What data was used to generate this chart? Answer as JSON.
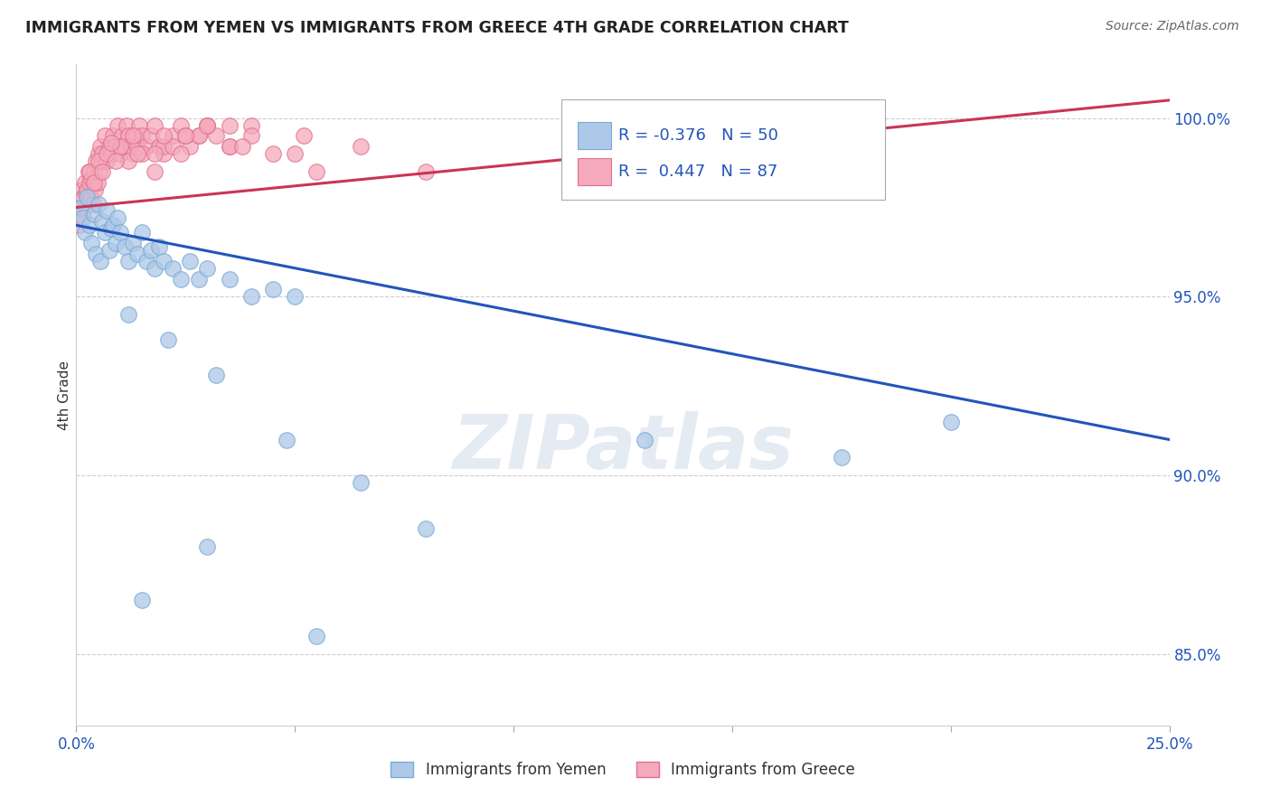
{
  "title": "IMMIGRANTS FROM YEMEN VS IMMIGRANTS FROM GREECE 4TH GRADE CORRELATION CHART",
  "source": "Source: ZipAtlas.com",
  "ylabel": "4th Grade",
  "xlim": [
    0.0,
    25.0
  ],
  "ylim": [
    83.0,
    101.5
  ],
  "yticks": [
    85.0,
    90.0,
    95.0,
    100.0
  ],
  "ytick_labels": [
    "85.0%",
    "90.0%",
    "95.0%",
    "100.0%"
  ],
  "yemen_R": -0.376,
  "yemen_N": 50,
  "greece_R": 0.447,
  "greece_N": 87,
  "yemen_color": "#adc8e8",
  "yemen_edge": "#7aaad4",
  "greece_color": "#f5aabb",
  "greece_edge": "#e07090",
  "trend_yemen_color": "#2255bb",
  "trend_greece_color": "#cc3355",
  "background_color": "#ffffff",
  "watermark": "ZIPatlas",
  "legend_text_color": "#2255bb",
  "title_color": "#222222",
  "source_color": "#666666",
  "yemen_x": [
    0.1,
    0.15,
    0.2,
    0.25,
    0.3,
    0.35,
    0.4,
    0.45,
    0.5,
    0.55,
    0.6,
    0.65,
    0.7,
    0.75,
    0.8,
    0.85,
    0.9,
    0.95,
    1.0,
    1.1,
    1.2,
    1.3,
    1.4,
    1.5,
    1.6,
    1.7,
    1.8,
    1.9,
    2.0,
    2.2,
    2.4,
    2.6,
    2.8,
    3.0,
    3.5,
    4.0,
    4.5,
    5.0,
    1.2,
    2.1,
    3.2,
    4.8,
    6.5,
    8.0,
    13.0,
    17.5,
    20.0,
    1.5,
    3.0,
    5.5
  ],
  "yemen_y": [
    97.5,
    97.2,
    96.8,
    97.8,
    97.0,
    96.5,
    97.3,
    96.2,
    97.6,
    96.0,
    97.1,
    96.8,
    97.4,
    96.3,
    96.9,
    97.0,
    96.5,
    97.2,
    96.8,
    96.4,
    96.0,
    96.5,
    96.2,
    96.8,
    96.0,
    96.3,
    95.8,
    96.4,
    96.0,
    95.8,
    95.5,
    96.0,
    95.5,
    95.8,
    95.5,
    95.0,
    95.2,
    95.0,
    94.5,
    93.8,
    92.8,
    91.0,
    89.8,
    88.5,
    91.0,
    90.5,
    91.5,
    86.5,
    88.0,
    85.5
  ],
  "greece_x": [
    0.05,
    0.08,
    0.1,
    0.12,
    0.15,
    0.18,
    0.2,
    0.22,
    0.25,
    0.28,
    0.3,
    0.32,
    0.35,
    0.38,
    0.4,
    0.42,
    0.45,
    0.48,
    0.5,
    0.52,
    0.55,
    0.58,
    0.6,
    0.65,
    0.7,
    0.75,
    0.8,
    0.85,
    0.9,
    0.95,
    1.0,
    1.05,
    1.1,
    1.15,
    1.2,
    1.25,
    1.3,
    1.35,
    1.4,
    1.45,
    1.5,
    1.6,
    1.7,
    1.8,
    1.9,
    2.0,
    2.2,
    2.4,
    2.6,
    2.8,
    3.0,
    3.2,
    3.5,
    4.0,
    0.3,
    0.5,
    0.7,
    1.0,
    1.3,
    2.0,
    2.5,
    3.0,
    1.5,
    2.2,
    0.8,
    1.8,
    2.8,
    0.4,
    0.6,
    1.2,
    1.8,
    2.4,
    3.5,
    0.9,
    1.4,
    2.0,
    3.0,
    4.0,
    3.5,
    2.5,
    5.0,
    5.5,
    6.5,
    8.0,
    4.5,
    3.8,
    5.2
  ],
  "greece_y": [
    97.0,
    97.5,
    97.2,
    98.0,
    97.8,
    97.5,
    98.2,
    97.9,
    98.0,
    98.5,
    98.2,
    97.8,
    98.3,
    97.6,
    98.5,
    98.0,
    98.8,
    98.2,
    99.0,
    98.5,
    99.2,
    98.8,
    99.0,
    99.5,
    98.8,
    99.2,
    99.0,
    99.5,
    99.2,
    99.8,
    99.0,
    99.5,
    99.2,
    99.8,
    99.5,
    99.2,
    99.0,
    99.5,
    99.2,
    99.8,
    99.5,
    99.2,
    99.5,
    99.8,
    99.2,
    99.0,
    99.5,
    99.8,
    99.2,
    99.5,
    99.8,
    99.5,
    99.8,
    99.8,
    98.5,
    98.8,
    99.0,
    99.2,
    99.5,
    99.2,
    99.5,
    99.8,
    99.0,
    99.2,
    99.3,
    99.0,
    99.5,
    98.2,
    98.5,
    98.8,
    98.5,
    99.0,
    99.2,
    98.8,
    99.0,
    99.5,
    99.8,
    99.5,
    99.2,
    99.5,
    99.0,
    98.5,
    99.2,
    98.5,
    99.0,
    99.2,
    99.5
  ],
  "trend_yemen_x0": 0.0,
  "trend_yemen_y0": 97.0,
  "trend_yemen_x1": 25.0,
  "trend_yemen_y1": 91.0,
  "trend_greece_x0": 0.0,
  "trend_greece_y0": 97.5,
  "trend_greece_x1": 25.0,
  "trend_greece_y1": 100.5
}
